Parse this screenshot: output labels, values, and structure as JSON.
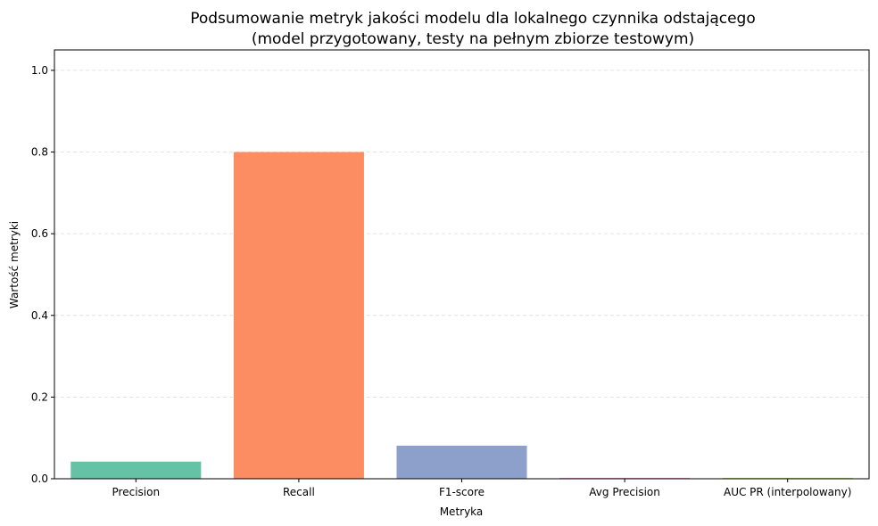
{
  "chart_data": {
    "type": "bar",
    "title": "Podsumowanie metryk jakości modelu dla lokalnego czynnika odstającego",
    "subtitle": "(model przygotowany, testy na pełnym zbiorze testowym)",
    "xlabel": "Metryka",
    "ylabel": "Wartość metryki",
    "categories": [
      "Precision",
      "Recall",
      "F1-score",
      "Avg Precision",
      "AUC PR (interpolowany)"
    ],
    "values": [
      0.042,
      0.8,
      0.081,
      0.002,
      0.002
    ],
    "colors": [
      "#66c2a5",
      "#fc8d62",
      "#8da0cb",
      "#e78ac3",
      "#a6d854"
    ],
    "ylim": [
      0,
      1.05
    ],
    "yticks": [
      0.0,
      0.2,
      0.4,
      0.6,
      0.8,
      1.0
    ],
    "ytick_labels": [
      "0.0",
      "0.2",
      "0.4",
      "0.6",
      "0.8",
      "1.0"
    ],
    "grid": "y-dashed",
    "legend": "none"
  }
}
